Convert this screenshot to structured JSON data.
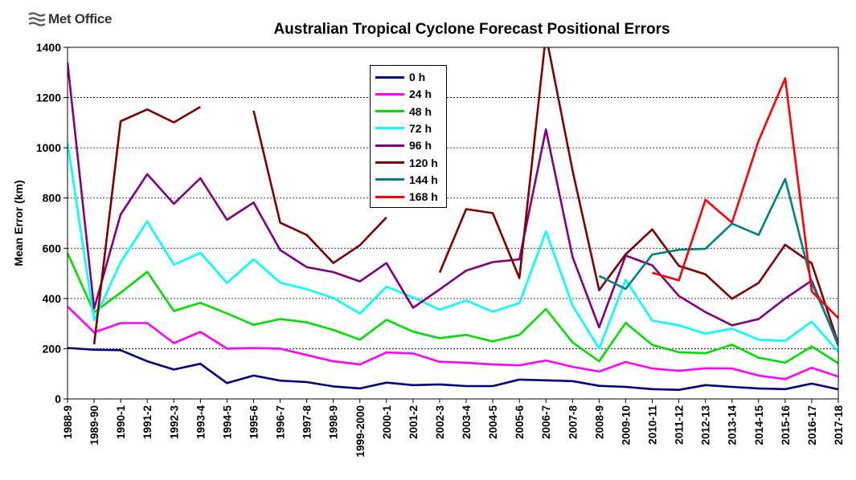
{
  "brand": {
    "name": "Met Office"
  },
  "chart_data": {
    "type": "line",
    "title": "Australian Tropical Cyclone Forecast Positional Errors",
    "xlabel": "",
    "ylabel": "Mean Error (km)",
    "ylim": [
      0,
      1400
    ],
    "yticks": [
      0,
      200,
      400,
      600,
      800,
      1000,
      1200,
      1400
    ],
    "grid": true,
    "legend_position": "top-center",
    "categories": [
      "1988-9",
      "1989-90",
      "1990-1",
      "1991-2",
      "1992-3",
      "1993-4",
      "1994-5",
      "1995-6",
      "1996-7",
      "1997-8",
      "1998-9",
      "1999-2000",
      "2000-1",
      "2001-2",
      "2002-3",
      "2003-4",
      "2004-5",
      "2005-6",
      "2006-7",
      "2007-8",
      "2008-9",
      "2009-10",
      "2010-11",
      "2011-12",
      "2012-13",
      "2013-14",
      "2014-15",
      "2015-16",
      "2016-17",
      "2017-18"
    ],
    "series": [
      {
        "name": "0 h",
        "color": "#000080",
        "values": [
          203,
          196,
          194,
          150,
          117,
          140,
          63,
          93,
          73,
          67,
          50,
          42,
          65,
          55,
          58,
          51,
          51,
          77,
          74,
          71,
          52,
          48,
          39,
          36,
          55,
          48,
          42,
          39,
          61,
          38
        ]
      },
      {
        "name": "24 h",
        "color": "#ff00ff",
        "values": [
          368,
          265,
          302,
          302,
          222,
          267,
          200,
          203,
          200,
          175,
          150,
          137,
          185,
          181,
          148,
          144,
          137,
          134,
          153,
          128,
          109,
          147,
          121,
          112,
          122,
          121,
          93,
          79,
          124,
          89
        ]
      },
      {
        "name": "48 h",
        "color": "#00e000",
        "values": [
          581,
          345,
          423,
          506,
          350,
          383,
          340,
          295,
          318,
          305,
          275,
          236,
          315,
          268,
          242,
          255,
          229,
          255,
          358,
          225,
          150,
          303,
          215,
          186,
          182,
          216,
          164,
          144,
          209,
          142
        ]
      },
      {
        "name": "72 h",
        "color": "#00ffff",
        "values": [
          1020,
          313,
          545,
          707,
          534,
          582,
          462,
          556,
          463,
          437,
          402,
          340,
          447,
          405,
          355,
          392,
          347,
          382,
          667,
          372,
          200,
          474,
          312,
          293,
          260,
          280,
          236,
          231,
          308,
          187
        ]
      },
      {
        "name": "96 h",
        "color": "#800080",
        "values": [
          1340,
          360,
          735,
          895,
          777,
          879,
          713,
          782,
          593,
          525,
          505,
          468,
          541,
          363,
          436,
          511,
          545,
          556,
          1073,
          566,
          285,
          571,
          532,
          410,
          346,
          293,
          318,
          400,
          471,
          213
        ]
      },
      {
        "name": "120 h",
        "color": "#800000",
        "values": [
          null,
          218,
          1106,
          1153,
          1101,
          1163,
          null,
          1148,
          702,
          653,
          541,
          612,
          723,
          null,
          503,
          756,
          740,
          481,
          1450,
          910,
          433,
          576,
          675,
          530,
          496,
          399,
          462,
          614,
          540,
          221
        ]
      },
      {
        "name": "144 h",
        "color": "#008080",
        "values": [
          null,
          null,
          null,
          null,
          null,
          null,
          null,
          null,
          null,
          null,
          null,
          null,
          null,
          null,
          null,
          null,
          null,
          null,
          null,
          null,
          490,
          438,
          575,
          594,
          598,
          698,
          653,
          876,
          462,
          220
        ]
      },
      {
        "name": "168 h",
        "color": "#ff0000",
        "values": [
          null,
          null,
          null,
          null,
          null,
          null,
          null,
          null,
          null,
          null,
          null,
          null,
          null,
          null,
          null,
          null,
          null,
          null,
          null,
          null,
          null,
          null,
          502,
          472,
          793,
          702,
          1028,
          1277,
          428,
          322
        ]
      }
    ]
  }
}
